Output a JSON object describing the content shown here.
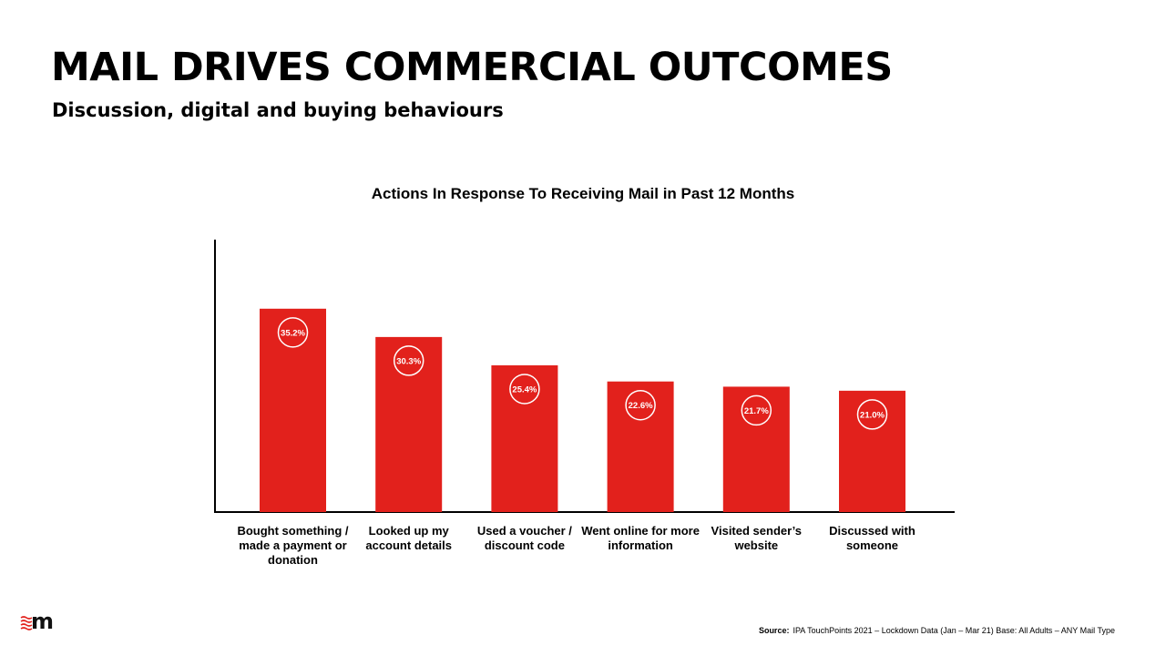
{
  "header": {
    "title": "MAIL DRIVES COMMERCIAL OUTCOMES",
    "subtitle": "Discussion, digital and buying behaviours"
  },
  "chart_data": {
    "type": "bar",
    "title": "Actions In Response To Receiving Mail in Past 12 Months",
    "categories": [
      "Bought something / made a payment or donation",
      "Looked up my account details",
      "Used a voucher / discount code",
      "Went online for more information",
      "Visited sender’s website",
      "Discussed with someone"
    ],
    "values": [
      35.2,
      30.3,
      25.4,
      22.6,
      21.7,
      21.0
    ],
    "data_labels": [
      "35.2%",
      "30.3%",
      "25.4%",
      "22.6%",
      "21.7%",
      "21.0%"
    ],
    "ylim": [
      0,
      47
    ],
    "grid": false,
    "bar_color": "#e2211c"
  },
  "footer": {
    "source_label": "Source:",
    "source_text": "IPA TouchPoints 2021 – Lockdown Data (Jan – Mar 21)  Base: All Adults – ANY Mail Type"
  }
}
